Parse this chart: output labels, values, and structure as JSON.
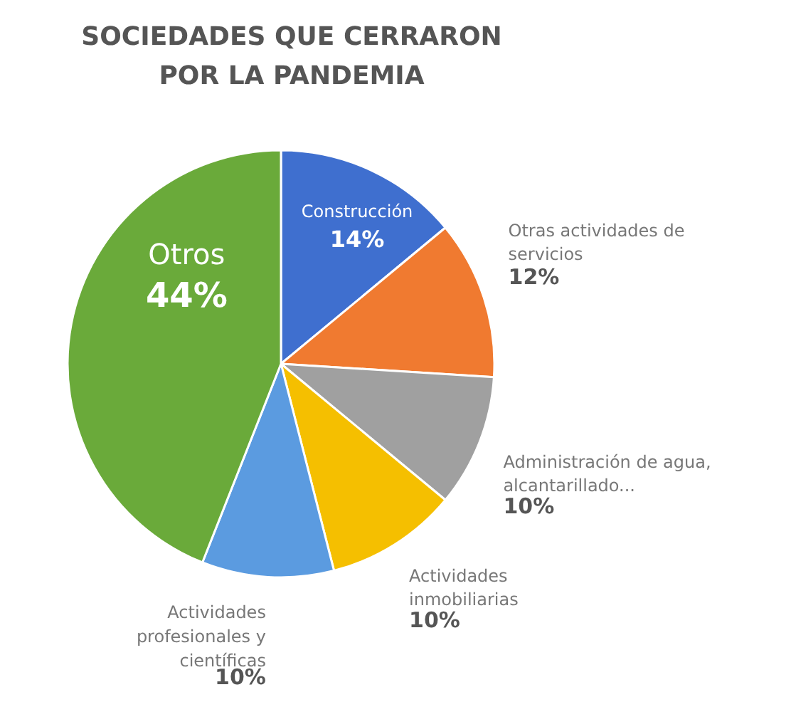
{
  "chart_data": {
    "type": "pie",
    "title": "SOCIEDADES QUE CERRARON POR LA PANDEMIA",
    "categories": [
      "Construcción",
      "Otras actividades de servicios",
      "Administración de agua, alcantarillado...",
      "Actividades inmobiliarias",
      "Actividades profesionales y científicas",
      "Otros"
    ],
    "values": [
      14,
      12,
      10,
      10,
      10,
      44
    ],
    "value_labels": [
      "14%",
      "12%",
      "10%",
      "10%",
      "10%",
      "44%"
    ],
    "colors": [
      "#3f6fcf",
      "#f07a30",
      "#a0a0a0",
      "#f5bf00",
      "#5b9be0",
      "#6aaa3a"
    ]
  }
}
